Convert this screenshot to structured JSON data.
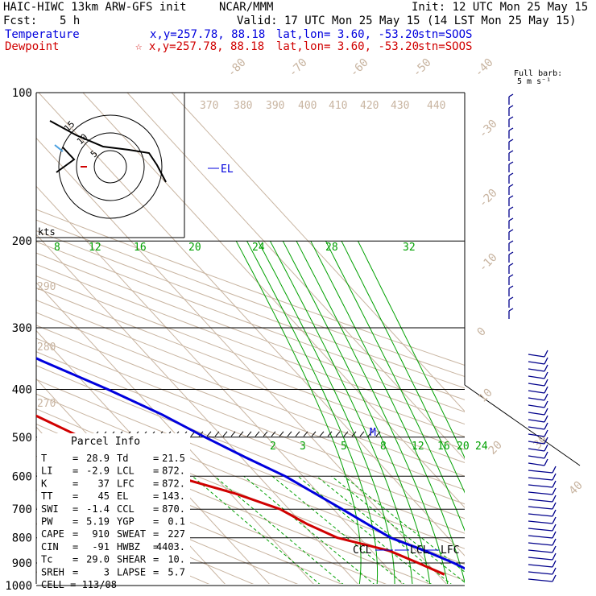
{
  "header": {
    "model": "HAIC-HIWC 13km ARW-GFS init",
    "org": "NCAR/MMM",
    "init": "Init: 12 UTC Mon 25 May 15",
    "fcst_label": "Fcst:",
    "fcst_value": "5 h",
    "valid": "Valid: 17 UTC Mon 25 May 15 (14 LST Mon 25 May 15)",
    "temp_label": "Temperature",
    "temp_loc": "x,y=257.78, 88.18",
    "dew_label": "Dewpoint",
    "dew_loc": "x,y=257.78, 88.18",
    "latlon_label": "lat,lon=",
    "latlon_value": "3.60, -53.20",
    "stn_label": "stn=SOOS",
    "star": "☆"
  },
  "barb_key": {
    "line1": "Full barb:",
    "line2": "5 m s⁻¹"
  },
  "hodograph": {
    "units": "kts",
    "ring_labels": [
      "15",
      "10",
      "5"
    ]
  },
  "parcel": {
    "title": "Parcel Info",
    "rows": [
      [
        "T",
        "28.9",
        "Td",
        "21.5"
      ],
      [
        "LI",
        "-2.9",
        "LCL",
        "872."
      ],
      [
        "K",
        "37",
        "LFC",
        "872."
      ],
      [
        "TT",
        "45",
        "EL",
        "143."
      ],
      [
        "SWI",
        "-1.4",
        "CCL",
        "870."
      ],
      [
        "PW",
        "5.19",
        "YGP",
        "0.1"
      ],
      [
        "CAPE",
        "910",
        "SWEAT",
        "227"
      ],
      [
        "CIN",
        "-91",
        "HWBZ",
        "4403."
      ],
      [
        "Tc",
        "29.0",
        "SHEAR",
        "10."
      ],
      [
        "SREH",
        "3",
        "LAPSE",
        "5.7"
      ]
    ],
    "cell": "CELL = 113/08"
  },
  "level_labels": {
    "el": "EL",
    "ccl": "CCL",
    "lcl": "LCL",
    "lfc": "LFC",
    "m": "M"
  },
  "colors": {
    "temperature": "#d00000",
    "dewpoint": "#0000dd",
    "isotherm": "#c8b4a0",
    "adiabat_label": "#c8b4a0",
    "moist": "#00a000",
    "barb": "#00008b"
  },
  "chart_data": {
    "type": "skew-T log-P sounding",
    "p_ticks": [
      100,
      200,
      300,
      400,
      500,
      600,
      700,
      800,
      900,
      1000
    ],
    "isotherm_labels": [
      -80,
      -70,
      -60,
      -50,
      -40,
      -30,
      -20,
      -10,
      0,
      10,
      20,
      30,
      40
    ],
    "theta_labels": [
      370,
      380,
      390,
      400,
      410,
      420,
      430,
      440,
      290,
      280,
      270
    ],
    "mixing_ratio_labels_upper": [
      8,
      12,
      16,
      20,
      24,
      28,
      32
    ],
    "mixing_ratio_labels_lower": [
      2,
      3,
      5,
      8,
      12,
      16,
      20,
      24
    ],
    "series": [
      {
        "name": "Temperature",
        "points": [
          [
            100,
            -87
          ],
          [
            110,
            -82
          ],
          [
            130,
            -74
          ],
          [
            150,
            -69
          ],
          [
            170,
            -65
          ],
          [
            200,
            -56
          ],
          [
            250,
            -44
          ],
          [
            300,
            -34
          ],
          [
            350,
            -25
          ],
          [
            400,
            -16
          ],
          [
            450,
            -9
          ],
          [
            500,
            -4
          ],
          [
            550,
            1
          ],
          [
            600,
            6
          ],
          [
            700,
            12
          ],
          [
            800,
            17
          ],
          [
            850,
            22
          ],
          [
            900,
            26
          ],
          [
            950,
            28.9
          ]
        ]
      },
      {
        "name": "Dewpoint",
        "points": [
          [
            100,
            -92
          ],
          [
            120,
            -89
          ],
          [
            150,
            -85
          ],
          [
            170,
            -80
          ],
          [
            200,
            -75
          ],
          [
            250,
            -70
          ],
          [
            280,
            -67
          ],
          [
            300,
            -61
          ],
          [
            350,
            -60
          ],
          [
            380,
            -53
          ],
          [
            400,
            -49
          ],
          [
            450,
            -38
          ],
          [
            500,
            -32
          ],
          [
            550,
            -23
          ],
          [
            600,
            -19
          ],
          [
            650,
            -9
          ],
          [
            700,
            -2
          ],
          [
            750,
            1
          ],
          [
            800,
            5
          ],
          [
            850,
            14
          ],
          [
            900,
            18
          ],
          [
            950,
            21.5
          ]
        ]
      }
    ]
  }
}
